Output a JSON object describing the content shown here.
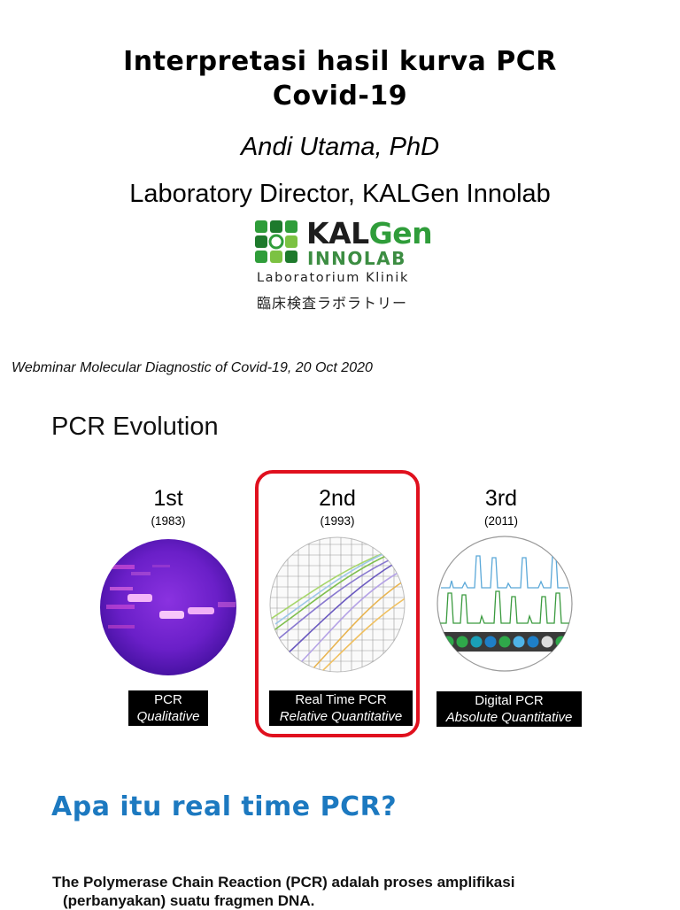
{
  "header": {
    "title_line1": "Interpretasi hasil kurva PCR",
    "title_line2": "Covid-19",
    "author": "Andi Utama, PhD",
    "role": "Laboratory Director, KALGen Innolab"
  },
  "logo": {
    "kal": "KAL",
    "gen": "Gen",
    "innolab": "INNOLAB",
    "sub": "Laboratorium Klinik",
    "jp": "臨床検査ラボラトリー",
    "brand_green": "#2f9d3a"
  },
  "webinar": "Webminar Molecular Diagnostic of Covid-19, 20 Oct 2020",
  "evolution": {
    "heading": "PCR Evolution",
    "generations": [
      {
        "label": "1st",
        "year": "(1983)",
        "caption_line1": "PCR",
        "caption_line2": "Qualitative"
      },
      {
        "label": "2nd",
        "year": "(1993)",
        "caption_line1": "Real Time PCR",
        "caption_line2": "Relative Quantitative"
      },
      {
        "label": "3rd",
        "year": "(2011)",
        "caption_line1": "Digital PCR",
        "caption_line2": "Absolute Quantitative"
      }
    ],
    "highlight_color": "#e0101e"
  },
  "section": {
    "heading": "Apa itu real time PCR?",
    "heading_color": "#1c79c0",
    "text_line1": "The Polymerase Chain Reaction (PCR) adalah proses amplifikasi",
    "text_line2": "(perbanyakan) suatu fragmen DNA."
  }
}
